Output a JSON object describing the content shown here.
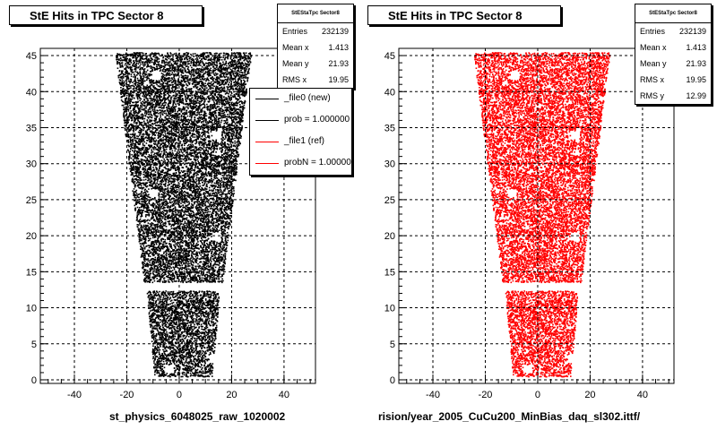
{
  "chart_data": [
    {
      "type": "scatter",
      "title": "StE Hits in TPC Sector 8",
      "xlabel": "st_physics_6048025_raw_1020002",
      "ylabel": "",
      "xlim": [
        -53,
        52
      ],
      "ylim": [
        -0.5,
        46
      ],
      "x_ticks": [
        -40,
        -20,
        0,
        20,
        40
      ],
      "y_ticks": [
        0,
        5,
        10,
        15,
        20,
        25,
        30,
        35,
        40,
        45
      ],
      "grid": true,
      "marker_color": "#000000",
      "stats": {
        "title": "StEStaTpc Sector8",
        "rows": [
          {
            "label": "Entries",
            "value": "232139"
          },
          {
            "label": "Mean x",
            "value": "1.413"
          },
          {
            "label": "Mean y",
            "value": "21.93"
          },
          {
            "label": "RMS x",
            "value": "19.95"
          }
        ]
      },
      "legend": {
        "placement": "right",
        "entries": [
          {
            "label": "_file0 (new)",
            "color": "#000000"
          },
          {
            "label": "prob = 1.000000",
            "color": "#000000"
          },
          {
            "label": "_file1 (ref)",
            "color": "#ff0000"
          },
          {
            "label": "probN = 1.000000",
            "color": "#ff0000"
          }
        ]
      }
    },
    {
      "type": "scatter",
      "title": "StE Hits in TPC Sector 8",
      "xlabel": "rision/year_2005_CuCu200_MinBias_daq_sl302.ittf/",
      "ylabel": "",
      "xlim": [
        -53,
        52
      ],
      "ylim": [
        -0.5,
        46
      ],
      "x_ticks": [
        -40,
        -20,
        0,
        20,
        40
      ],
      "y_ticks": [
        0,
        5,
        10,
        15,
        20,
        25,
        30,
        35,
        40,
        45
      ],
      "grid": true,
      "marker_color": "#ff0000",
      "stats": {
        "title": "StEStaTpc Sector8",
        "rows": [
          {
            "label": "Entries",
            "value": "232139"
          },
          {
            "label": "Mean x",
            "value": "1.413"
          },
          {
            "label": "Mean y",
            "value": "21.93"
          },
          {
            "label": "RMS x",
            "value": "19.95"
          },
          {
            "label": "RMS y",
            "value": "12.99"
          }
        ]
      }
    }
  ]
}
